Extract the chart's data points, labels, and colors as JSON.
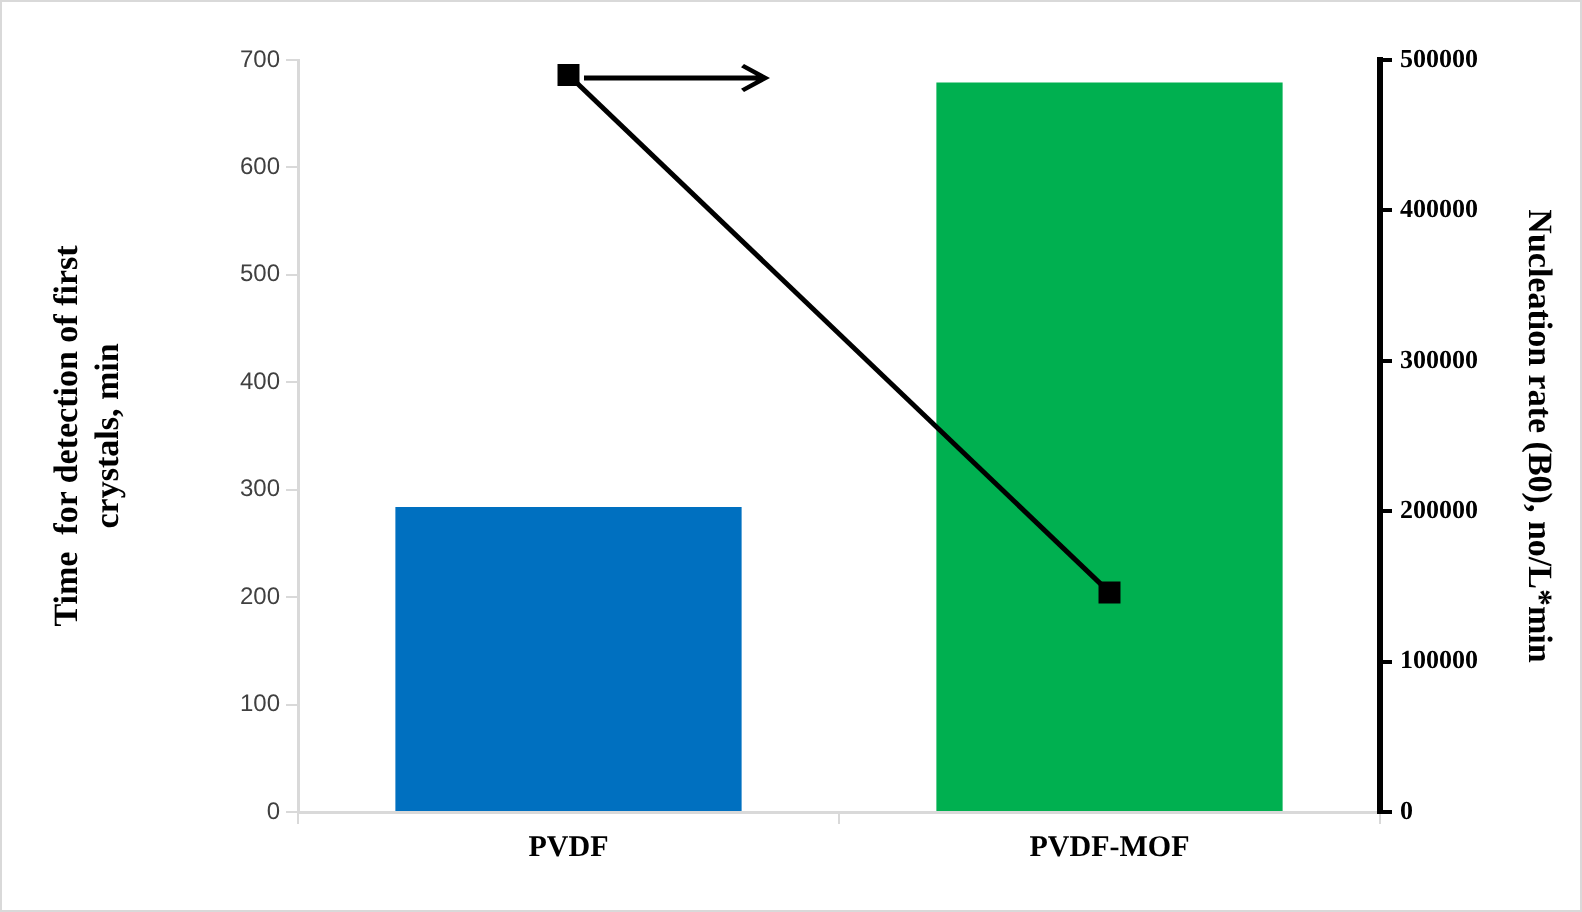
{
  "chart_data": {
    "type": "bar",
    "xlabel": null,
    "ylabel": "Time  for detection of first crystals, min",
    "y2label": "Nucleation rate (B0), no/L*min",
    "categories": [
      "PVDF",
      "PVDF-MOF"
    ],
    "series": [
      {
        "colors": [
          "#0070c0",
          "#00b050"
        ],
        "values": [
          284,
          679
        ]
      },
      {
        "type": "line",
        "axis": "y2",
        "color": "#000000",
        "marker": "square",
        "values": [
          490000,
          146000
        ]
      }
    ],
    "ylim": [
      0,
      700
    ],
    "yticks": [
      0,
      100,
      200,
      300,
      400,
      500,
      600,
      700
    ],
    "y2lim": [
      0,
      500000
    ],
    "y2ticks": [
      0,
      100000,
      200000,
      300000,
      400000,
      500000
    ],
    "grid": false,
    "legend": false
  }
}
